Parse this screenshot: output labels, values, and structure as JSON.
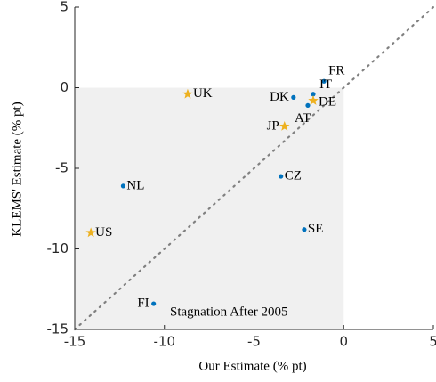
{
  "chart_data": {
    "type": "scatter",
    "x_label": "Our Estimate (% pt)",
    "y_label": "KLEMS' Estimate (% pt)",
    "xlim": [
      -15,
      5
    ],
    "ylim": [
      -15,
      5
    ],
    "xticks": [
      -15,
      -10,
      -5,
      0,
      5
    ],
    "yticks": [
      -15,
      -10,
      -5,
      0,
      5
    ],
    "shade": {
      "x": [
        -15,
        0
      ],
      "y": [
        -15,
        0
      ],
      "color": "#f0f0f0"
    },
    "diagonal": true,
    "annotation": "Stagnation After 2005",
    "series": [
      {
        "color": "#0072bd",
        "marker": "dot",
        "labels": [
          "FR",
          "IT",
          "DK",
          "AT",
          "CZ",
          "NL",
          "SE",
          "FI"
        ],
        "x": [
          -1.1,
          -1.7,
          -2.8,
          -2.0,
          -3.5,
          -12.3,
          -2.2,
          -10.6
        ],
        "y": [
          0.4,
          -0.4,
          -0.6,
          -1.1,
          -5.5,
          -6.1,
          -8.8,
          -13.4
        ]
      },
      {
        "color": "#edb120",
        "marker": "star",
        "labels": [
          "DE",
          "JP",
          "UK",
          "US"
        ],
        "x": [
          -1.7,
          -3.3,
          -8.7,
          -14.1
        ],
        "y": [
          -0.8,
          -2.4,
          -0.4,
          -9.0
        ]
      }
    ]
  }
}
